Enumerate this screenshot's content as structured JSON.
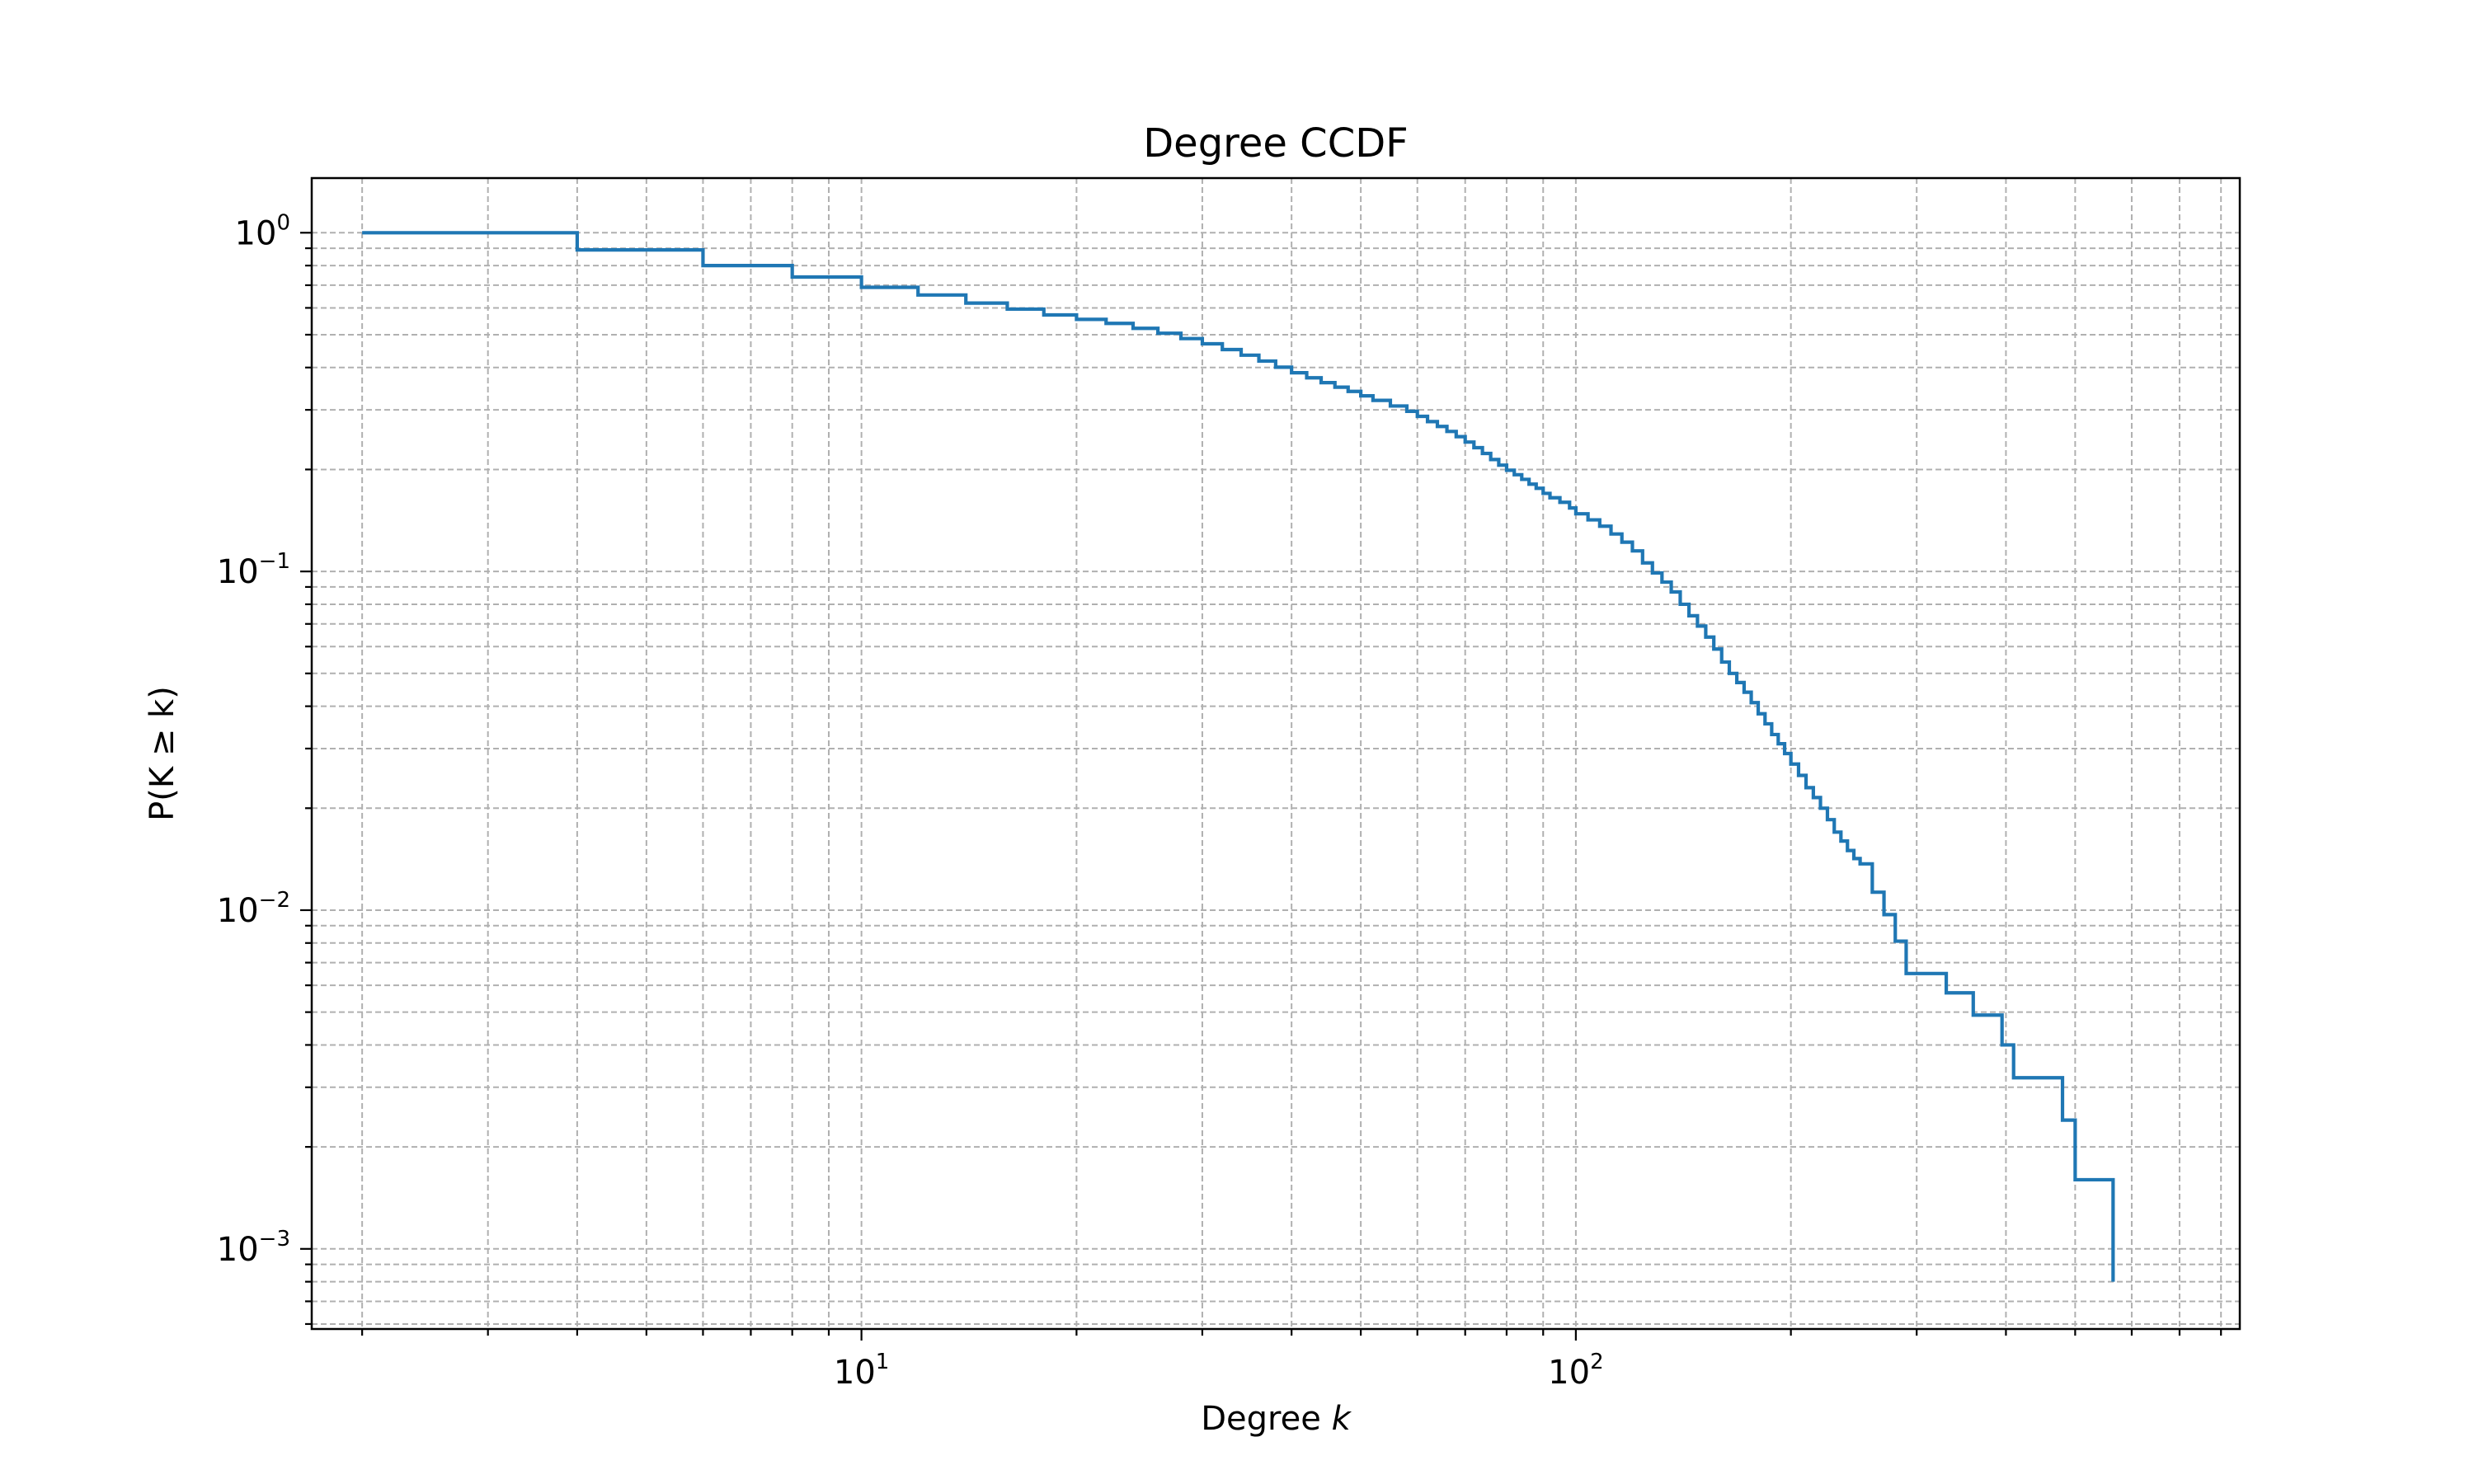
{
  "chart_data": {
    "type": "line",
    "drawstyle": "steps-post",
    "title": "Degree CCDF",
    "xlabel_prefix": "Degree ",
    "xlabel_var": "k",
    "ylabel": "P(K ≥ k)",
    "xscale": "log",
    "yscale": "log",
    "xlim": [
      1.7,
      850
    ],
    "ylim": [
      0.00058,
      1.45
    ],
    "grid": true,
    "line_color": "#1f77b4",
    "x_ticks": [
      {
        "base": "10",
        "exp": "1",
        "value": 10
      },
      {
        "base": "10",
        "exp": "2",
        "value": 100
      }
    ],
    "y_ticks": [
      {
        "base": "10",
        "exp": "0",
        "value": 1
      },
      {
        "base": "10",
        "exp": "−1",
        "value": 0.1
      },
      {
        "base": "10",
        "exp": "−2",
        "value": 0.01
      },
      {
        "base": "10",
        "exp": "−3",
        "value": 0.001
      }
    ],
    "series": [
      {
        "x": [
          2,
          4,
          6,
          8,
          10,
          12,
          14,
          16,
          18,
          20,
          22,
          24,
          26,
          28,
          30,
          32,
          34,
          36,
          38,
          40,
          42,
          44,
          46,
          48,
          50,
          52,
          55,
          58,
          60,
          62,
          64,
          66,
          68,
          70,
          72,
          74,
          76,
          78,
          80,
          82,
          84,
          86,
          88,
          90,
          92,
          95,
          98,
          100,
          104,
          108,
          112,
          116,
          120,
          124,
          128,
          132,
          136,
          140,
          144,
          148,
          152,
          156,
          160,
          164,
          168,
          172,
          176,
          180,
          184,
          188,
          192,
          196,
          200,
          205,
          210,
          215,
          220,
          225,
          230,
          235,
          240,
          245,
          250,
          255,
          260,
          265,
          270,
          275,
          280,
          285,
          290,
          330,
          345,
          360,
          385,
          395,
          410,
          420,
          480,
          500,
          520,
          565
        ],
        "y": [
          1.0,
          0.89,
          0.8,
          0.74,
          0.69,
          0.655,
          0.62,
          0.595,
          0.572,
          0.555,
          0.54,
          0.522,
          0.505,
          0.487,
          0.47,
          0.452,
          0.435,
          0.418,
          0.401,
          0.386,
          0.373,
          0.361,
          0.35,
          0.34,
          0.33,
          0.32,
          0.308,
          0.297,
          0.287,
          0.277,
          0.268,
          0.259,
          0.25,
          0.241,
          0.232,
          0.223,
          0.214,
          0.206,
          0.199,
          0.193,
          0.187,
          0.181,
          0.176,
          0.17,
          0.165,
          0.16,
          0.154,
          0.148,
          0.142,
          0.136,
          0.129,
          0.122,
          0.115,
          0.106,
          0.099,
          0.093,
          0.087,
          0.08,
          0.074,
          0.069,
          0.064,
          0.059,
          0.054,
          0.05,
          0.047,
          0.044,
          0.041,
          0.038,
          0.0355,
          0.033,
          0.031,
          0.029,
          0.027,
          0.025,
          0.023,
          0.0215,
          0.02,
          0.0185,
          0.017,
          0.016,
          0.015,
          0.0142,
          0.0137,
          0.0137,
          0.0113,
          0.0113,
          0.0097,
          0.0097,
          0.0081,
          0.0081,
          0.0065,
          0.0057,
          0.0057,
          0.0049,
          0.0049,
          0.004,
          0.0032,
          0.0032,
          0.0024,
          0.0016,
          0.0016,
          0.0008
        ]
      }
    ]
  }
}
